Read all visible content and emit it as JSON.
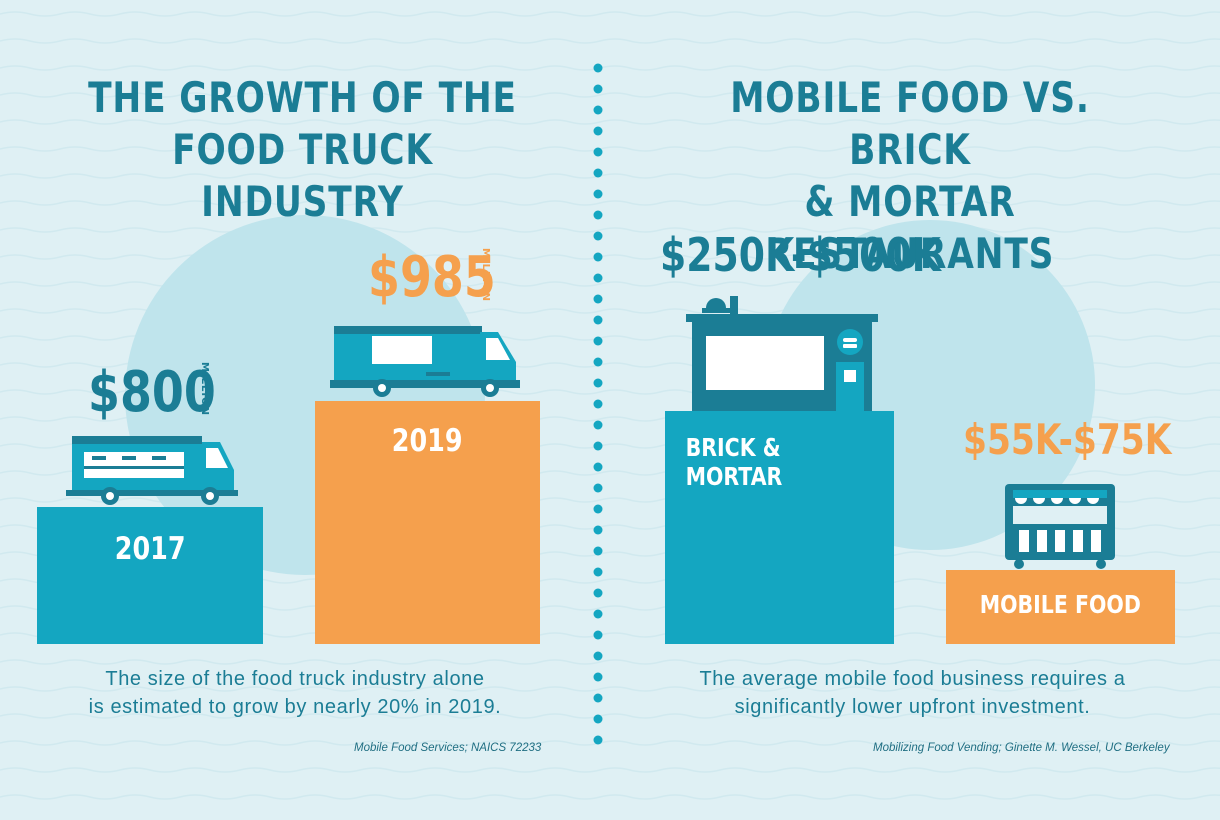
{
  "colors": {
    "background": "#dff0f4",
    "teal": "#14a6c1",
    "dark_teal": "#1b7d95",
    "orange": "#f5a04d",
    "circle": "#bfe4ec"
  },
  "chart_data": [
    {
      "type": "bar",
      "title": "THE GROWTH OF THE\nFOOD TRUCK INDUSTRY",
      "categories": [
        "2017",
        "2019"
      ],
      "values": [
        800,
        985
      ],
      "value_labels": [
        "$800",
        "$985"
      ],
      "unit": "MILLION",
      "caption": "The size of the food truck industry alone\nis estimated to grow by nearly 20% in 2019.",
      "source": "Mobile Food Services; NAICS 72233",
      "icons": [
        "food-truck-icon",
        "food-truck-icon"
      ]
    },
    {
      "type": "bar",
      "title": "MOBILE FOOD VS. BRICK\n& MORTAR RESTAURANTS",
      "categories": [
        "BRICK & MORTAR",
        "MOBILE FOOD"
      ],
      "ranges": [
        [
          250000,
          500000
        ],
        [
          55000,
          75000
        ]
      ],
      "value_labels": [
        "$250K-$500K",
        "$55K-$75K"
      ],
      "caption": "The average mobile food business requires a\nsignificantly lower upfront investment.",
      "source": "Mobilizing Food Vending; Ginette M. Wessel, UC Berkeley",
      "icons": [
        "restaurant-building-icon",
        "food-cart-icon"
      ]
    }
  ]
}
